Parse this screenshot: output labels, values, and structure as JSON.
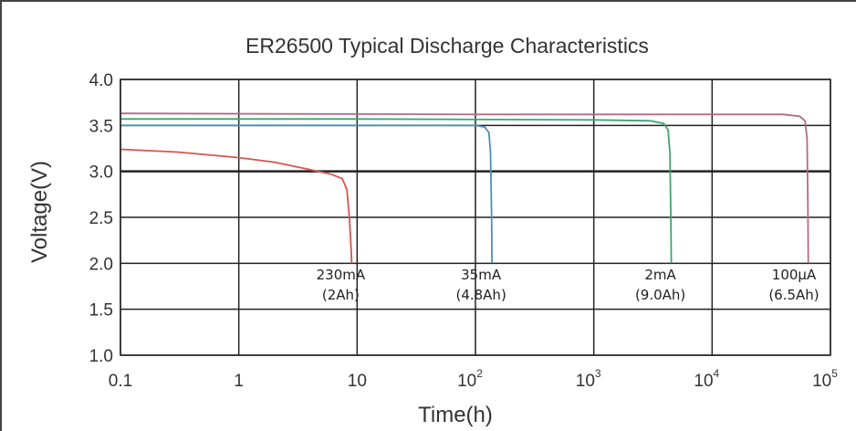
{
  "chart_data": {
    "type": "line",
    "title": "ER26500 Typical Discharge Characteristics",
    "xlabel": "Time(h)",
    "ylabel": "Voltage(V)",
    "xscale": "log",
    "xlim": [
      0.1,
      100000
    ],
    "ylim": [
      1.0,
      4.0
    ],
    "grid": true,
    "x_tick_labels": [
      {
        "base": "0.1",
        "exp": ""
      },
      {
        "base": "1",
        "exp": ""
      },
      {
        "base": "10",
        "exp": ""
      },
      {
        "base": "10",
        "exp": "2"
      },
      {
        "base": "10",
        "exp": "3"
      },
      {
        "base": "10",
        "exp": "4"
      },
      {
        "base": "10",
        "exp": "5"
      }
    ],
    "y_tick_labels": [
      "1.0",
      "1.5",
      "2.0",
      "2.5",
      "3.0",
      "3.5",
      "4.0"
    ],
    "series": [
      {
        "color": "#d9534f",
        "label_line1": "230mA",
        "label_line2": "(2Ah)",
        "x": [
          0.1,
          0.3,
          1,
          2,
          4,
          6,
          7.5,
          8.2,
          8.6,
          8.9,
          9.0
        ],
        "y": [
          3.24,
          3.21,
          3.15,
          3.1,
          3.02,
          2.97,
          2.92,
          2.8,
          2.5,
          2.15,
          2.0
        ]
      },
      {
        "color": "#4a90b8",
        "label_line1": "35mA",
        "label_line2": "(4.8Ah)",
        "x": [
          0.1,
          1,
          10,
          100,
          120,
          130,
          134,
          137,
          138
        ],
        "y": [
          3.5,
          3.5,
          3.5,
          3.5,
          3.48,
          3.42,
          3.2,
          2.5,
          2.0
        ]
      },
      {
        "color": "#3fa56e",
        "label_line1": "2mA",
        "label_line2": "(9.0Ah)",
        "x": [
          0.1,
          10,
          1000,
          3000,
          3900,
          4250,
          4400,
          4480,
          4520
        ],
        "y": [
          3.57,
          3.57,
          3.56,
          3.55,
          3.52,
          3.45,
          3.2,
          2.5,
          2.0
        ]
      },
      {
        "color": "#b56a86",
        "label_line1": "100μA",
        "label_line2": "(6.5Ah)",
        "x": [
          0.1,
          100,
          10000,
          40000,
          55000,
          61000,
          63500,
          64500,
          65000
        ],
        "y": [
          3.63,
          3.62,
          3.62,
          3.62,
          3.6,
          3.55,
          3.35,
          2.6,
          2.0
        ]
      }
    ]
  }
}
